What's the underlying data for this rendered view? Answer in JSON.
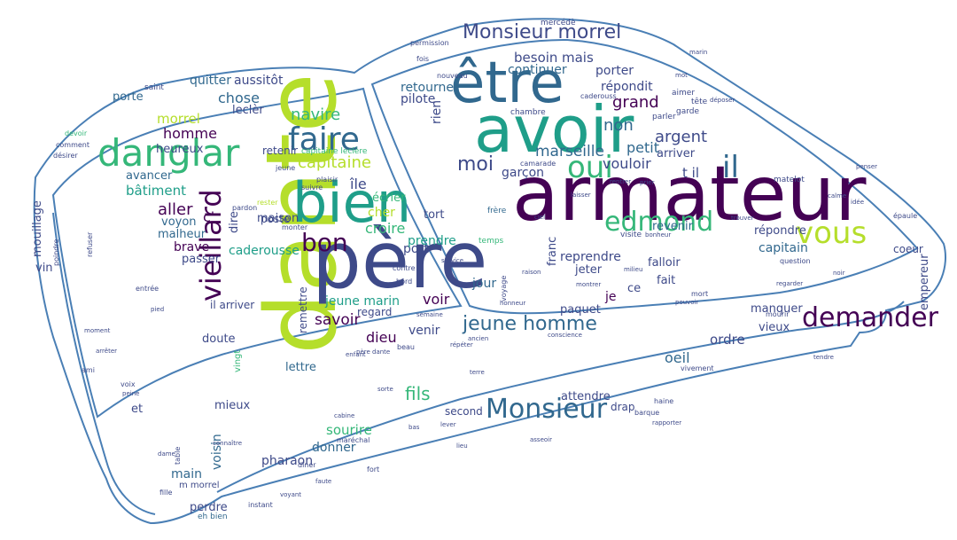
{
  "palette": {
    "outline": "#4a7fb5",
    "background": "#ffffff",
    "yellowgreen": "#b5de2b",
    "green": "#35b779",
    "teal": "#1f9e89",
    "blue": "#31688e",
    "indigo": "#3e4a89",
    "purple": "#440154"
  },
  "words": {
    "w01": "armateur",
    "w02": "avoir",
    "w03": "être",
    "w04": "dante",
    "w05": "père",
    "w06": "bien",
    "w07": "danglar",
    "w08": "faire",
    "w09": "oui",
    "w10": "edmond",
    "w11": "vous",
    "w12": "il",
    "w13": "Monsieur",
    "w14": "demander",
    "w15": "Monsieur morrel",
    "w16": "vieillard",
    "w17": "bon",
    "w18": "jeune homme",
    "w19": "capitaine",
    "w20": "moi",
    "w21": "marseille",
    "w22": "vouloir",
    "w23": "argent",
    "w24": "non",
    "w25": "grand",
    "w26": "répondit",
    "w27": "besoin",
    "w28": "mais",
    "w29": "continuer",
    "w30": "porter",
    "w31": "retourner",
    "w32": "pilote",
    "w33": "rien",
    "w34": "garçon",
    "w35": "navire",
    "w36": "homme",
    "w37": "chose",
    "w38": "quitter",
    "w39": "aussitôt",
    "w40": "morrel",
    "w41": "leclèr",
    "w42": "heureux",
    "w43": "bâtiment",
    "w44": "avancer",
    "w45": "aller",
    "w46": "c'",
    "w47": "voyon",
    "w48": "malheur",
    "w49": "brave",
    "w50": "passer",
    "w51": "caderousse",
    "w52": "croire",
    "w53": "port",
    "w54": "tort",
    "w55": "prendre",
    "w56": "reprendre",
    "w57": "jeter",
    "w58": "fait",
    "w59": "petit",
    "w60": "arriver",
    "w61": "répondre",
    "w62": "falloir",
    "w63": "capitain",
    "w64": "revenir",
    "w65": "coeur",
    "w66": "manquer",
    "w67": "vieux",
    "w68": "ordre",
    "w69": "oeil",
    "w70": "empereur",
    "w71": "jeune marin",
    "w72": "voir",
    "w73": "savoir",
    "w74": "venir",
    "w75": "dieu",
    "w76": "regard",
    "w77": "paquet",
    "w78": "je",
    "w79": "ce",
    "w80": "il arriver",
    "w81": "doute",
    "w82": "lettre",
    "w83": "mieux",
    "w84": "fils",
    "w85": "second",
    "w86": "sourire",
    "w87": "donner",
    "w88": "pharaon",
    "w89": "attendre",
    "w90": "drap",
    "w91": "voisin",
    "w92": "main",
    "w93": "m morrel",
    "w94": "perdre",
    "w95": "eh bien",
    "w96": "et",
    "w97": "mouillage",
    "w98": "vin",
    "w99": "maison",
    "w100": "poste",
    "w101": "dire",
    "w102": "cher",
    "w103": "écrier",
    "w104": "île",
    "w105": "retenir",
    "w106": "mercédè",
    "w107": "porte",
    "w108": "saint",
    "w109": "chambre",
    "w110": "frère",
    "w111": "remettre",
    "w112": "temps",
    "w113": "franc",
    "w114": "t il",
    "w115": "jour",
    "w116": "parler",
    "w117": "garde",
    "w118": "visite",
    "w119": "matelot",
    "w120": "tête",
    "w121": "aimer",
    "w122": "permission",
    "w123": "fois",
    "w124": "nouveau",
    "w125": "comment",
    "w126": "désirer",
    "w127": "devoir",
    "w128": "bord",
    "w129": "contre",
    "w130": "plaisir",
    "w131": "monter",
    "w132": "jeune",
    "w133": "suivre",
    "w134": "capitaine leclère",
    "w135": "rester",
    "w136": "pardon",
    "w137": "vingt",
    "w138": "voix",
    "w139": "barque",
    "w140": "haine",
    "w141": "question",
    "w142": "mort",
    "w143": "épaule",
    "w144": "instant",
    "w145": "fille",
    "w146": "dîner",
    "w147": "table",
    "w148": "refuser",
    "w149": "poindre",
    "w150": "conscience",
    "w151": "semaine",
    "w152": "beau",
    "w153": "père dante",
    "w154": "ami",
    "w155": "peine",
    "w156": "fort",
    "w157": "lieu",
    "w158": "regarder",
    "w159": "noir",
    "w160": "enfant",
    "w161": "ciel",
    "w162": "camarade",
    "w163": "voyage",
    "w164": "laisser",
    "w165": "rentrer",
    "w166": "prier",
    "w167": "montrer",
    "w168": "bonheur",
    "w169": "rapporter",
    "w170": "cabine",
    "w171": "déposer",
    "w172": "ancien",
    "w173": "répéter",
    "w174": "vivement",
    "w175": "caderouss",
    "w176": "mot",
    "w177": "maréchal",
    "w178": "connaître",
    "w179": "entrée",
    "w180": "mourir",
    "w181": "milieu",
    "w182": "dame",
    "w183": "asseoir",
    "w184": "pouvoir",
    "w185": "honneur",
    "w186": "sorte",
    "w187": "lever",
    "w188": "bas",
    "w189": "voyant",
    "w190": "faute",
    "w191": "moment",
    "w192": "pied",
    "w193": "arrêter",
    "w194": "tendre",
    "w195": "calme",
    "w196": "idée",
    "w197": "service",
    "w198": "raison",
    "w199": "terre",
    "w200": "marin",
    "w201": "trouver",
    "w202": "penser"
  }
}
